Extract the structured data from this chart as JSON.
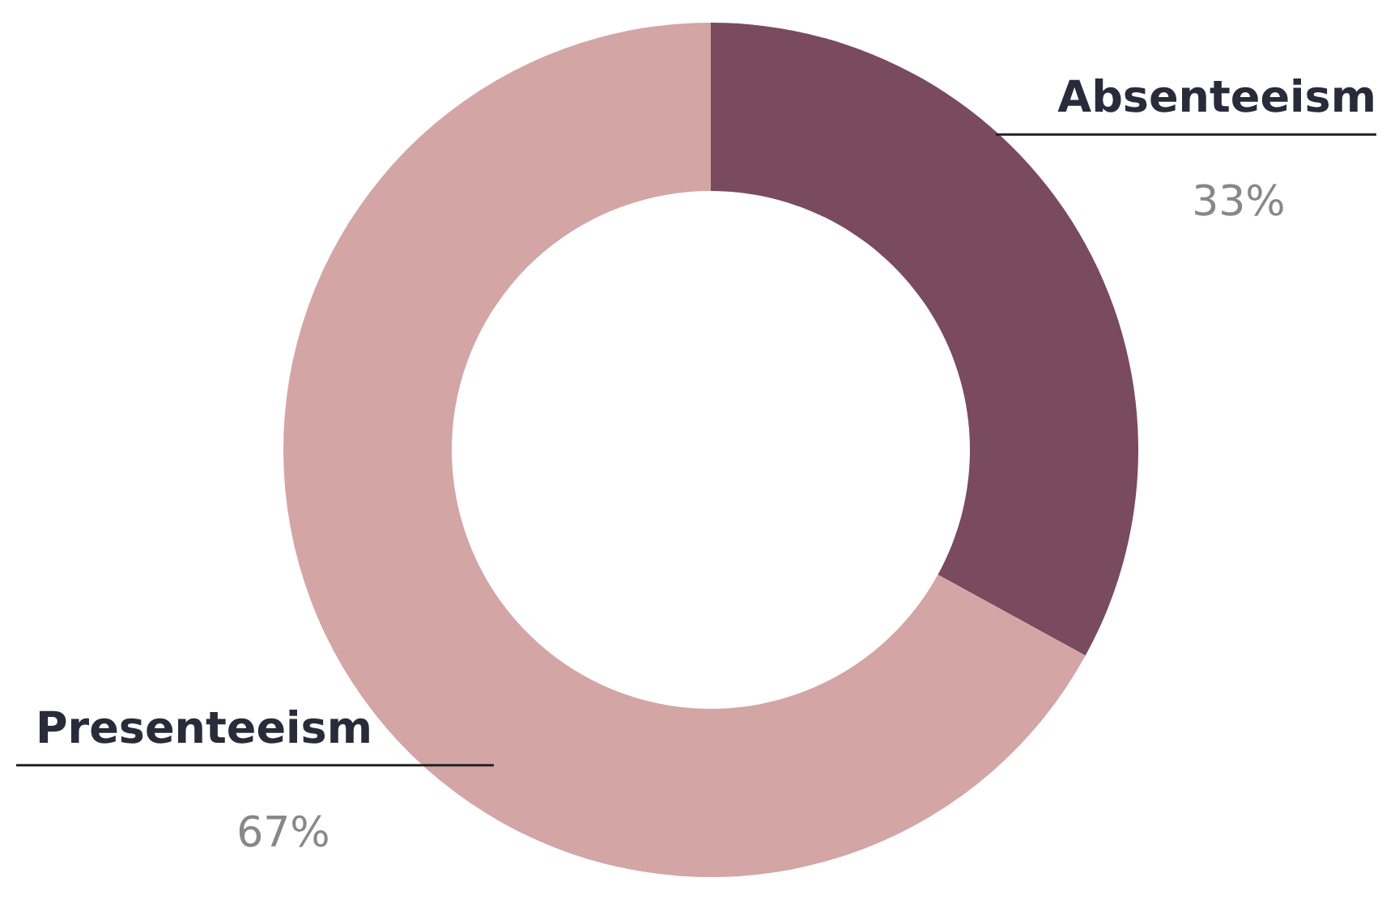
{
  "chart_data": {
    "type": "donut",
    "categories": [
      "Absenteeism",
      "Presenteeism"
    ],
    "values": [
      33,
      67
    ],
    "colors": [
      "#7a4a5e",
      "#d4a5a5"
    ],
    "value_labels": [
      "33%",
      "67%"
    ]
  }
}
